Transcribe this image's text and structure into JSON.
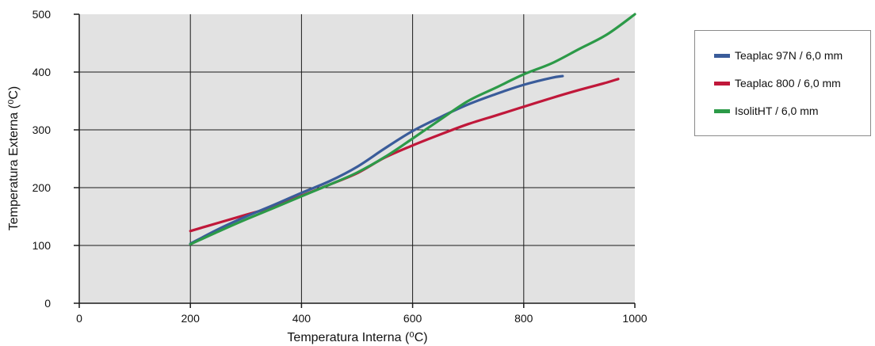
{
  "chart_data": {
    "type": "line",
    "xlabel": "Temperatura Interna (⁰C)",
    "ylabel": "Temperatura Externa (⁰C)",
    "xlim": [
      0,
      1000
    ],
    "ylim": [
      0,
      500
    ],
    "xticks": [
      "0",
      "200",
      "400",
      "600",
      "800",
      "1000"
    ],
    "yticks": [
      "0",
      "100",
      "200",
      "300",
      "400",
      "500"
    ],
    "grid": true,
    "legend_position": "right",
    "series": [
      {
        "name": "Teaplac 97N / 6,0 mm",
        "color": "#3a5c9a",
        "x": [
          200,
          250,
          300,
          350,
          400,
          450,
          500,
          550,
          600,
          650,
          700,
          750,
          800,
          850,
          870
        ],
        "y": [
          103,
          128,
          150,
          170,
          191,
          211,
          236,
          268,
          298,
          322,
          344,
          362,
          378,
          390,
          393
        ]
      },
      {
        "name": "Teaplac 800 / 6,0 mm",
        "color": "#c0183a",
        "x": [
          200,
          250,
          300,
          350,
          400,
          450,
          500,
          550,
          600,
          650,
          700,
          750,
          800,
          850,
          900,
          950,
          970
        ],
        "y": [
          125,
          139,
          153,
          167,
          186,
          205,
          225,
          252,
          273,
          292,
          310,
          325,
          340,
          355,
          369,
          382,
          388
        ]
      },
      {
        "name": "IsolitHT / 6,0 mm",
        "color": "#2c9a48",
        "x": [
          200,
          250,
          300,
          350,
          400,
          450,
          500,
          550,
          600,
          650,
          700,
          750,
          800,
          850,
          900,
          950,
          1000
        ],
        "y": [
          102,
          124,
          145,
          165,
          185,
          205,
          226,
          253,
          285,
          318,
          350,
          373,
          396,
          415,
          440,
          465,
          500
        ]
      }
    ]
  }
}
